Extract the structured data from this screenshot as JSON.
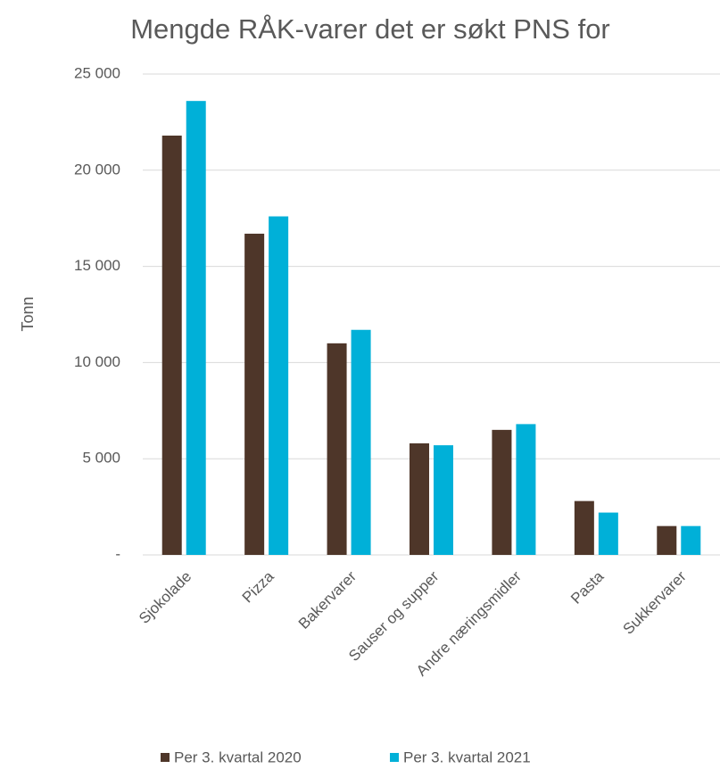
{
  "chart_data": {
    "type": "bar",
    "title": "Mengde RÅK-varer det er søkt PNS for",
    "y_label": "Tonn",
    "categories": [
      "Sjokolade",
      "Pizza",
      "Bakervarer",
      "Sauser og supper",
      "Andre næringsmidler",
      "Pasta",
      "Sukkervarer"
    ],
    "series": [
      {
        "name": "Per 3. kvartal 2020",
        "color": "#4e3629",
        "values": [
          21800,
          16700,
          11000,
          5800,
          6500,
          2800,
          1500
        ]
      },
      {
        "name": "Per 3. kvartal 2021",
        "color": "#00b0d8",
        "values": [
          23600,
          17600,
          11700,
          5700,
          6800,
          2200,
          1500
        ]
      }
    ],
    "ylim": [
      0,
      25000
    ],
    "yticks": [
      {
        "value": 0,
        "label": "-"
      },
      {
        "value": 5000,
        "label": "5 000"
      },
      {
        "value": 10000,
        "label": "10 000"
      },
      {
        "value": 15000,
        "label": "15 000"
      },
      {
        "value": 20000,
        "label": "20 000"
      },
      {
        "value": 25000,
        "label": "25 000"
      }
    ],
    "grid": true,
    "legend": "bottom"
  }
}
